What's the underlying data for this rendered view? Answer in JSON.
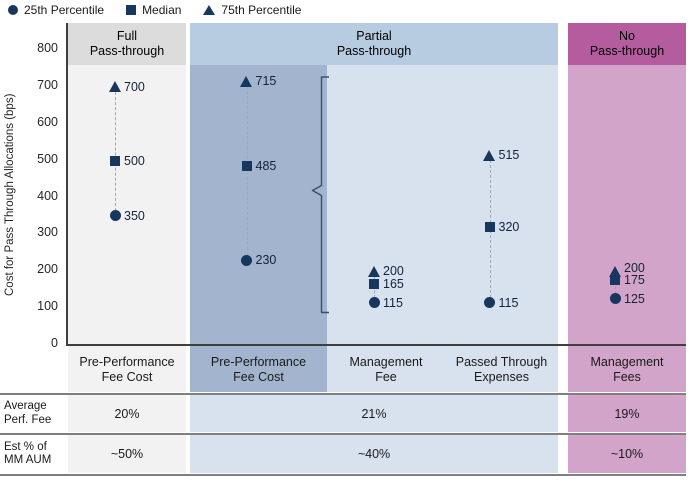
{
  "colors": {
    "marker_navy": "#17375e",
    "full_header_bg": "#dcdcdc",
    "full_body_bg": "#f2f2f2",
    "partial_header_bg": "#b7cbe1",
    "partial_preperf_body_bg": "#a2b4ce",
    "partial_body_bg": "#d8e1ee",
    "no_header_bg": "#b55c9e",
    "no_body_bg": "#d2a4c9",
    "axis_line": "#3f3f3f",
    "separator_line": "#7f7f7f",
    "dashed_line": "#a0a8b4",
    "brace_line": "#3d5066"
  },
  "chart_data": {
    "type": "scatter",
    "ylabel": "Cost for Pass Through Allocations (bps)",
    "ylim": [
      0,
      800
    ],
    "ytick_step": 100,
    "grid": false,
    "legend_position": "top-left",
    "legend": [
      {
        "marker": "circle",
        "label": "25th Percentile"
      },
      {
        "marker": "square",
        "label": "Median"
      },
      {
        "marker": "triangle",
        "label": "75th Percentile"
      }
    ],
    "groups": [
      {
        "label": "Full\nPass-through",
        "column_indexes": [
          0
        ]
      },
      {
        "label": "Partial\nPass-through",
        "column_indexes": [
          1,
          2,
          3
        ]
      },
      {
        "label": "No\nPass-through",
        "column_indexes": [
          4
        ]
      }
    ],
    "columns": [
      {
        "label": "Pre-Performance\nFee Cost",
        "p25": 350,
        "median": 500,
        "p75": 700
      },
      {
        "label": "Pre-Performance\nFee Cost",
        "p25": 230,
        "median": 485,
        "p75": 715
      },
      {
        "label": "Management\nFee",
        "p25": 115,
        "median": 165,
        "p75": 200
      },
      {
        "label": "Passed Through\nExpenses",
        "p25": 115,
        "median": 320,
        "p75": 515
      },
      {
        "label": "Management\nFees",
        "p25": 125,
        "median": 175,
        "p75": 200
      }
    ]
  },
  "table": {
    "rows": [
      {
        "label": "Average\nPerf. Fee",
        "values": [
          "20%",
          "21%",
          "19%"
        ]
      },
      {
        "label": "Est % of\nMM AUM",
        "values": [
          "~50%",
          "~40%",
          "~10%"
        ]
      }
    ]
  }
}
